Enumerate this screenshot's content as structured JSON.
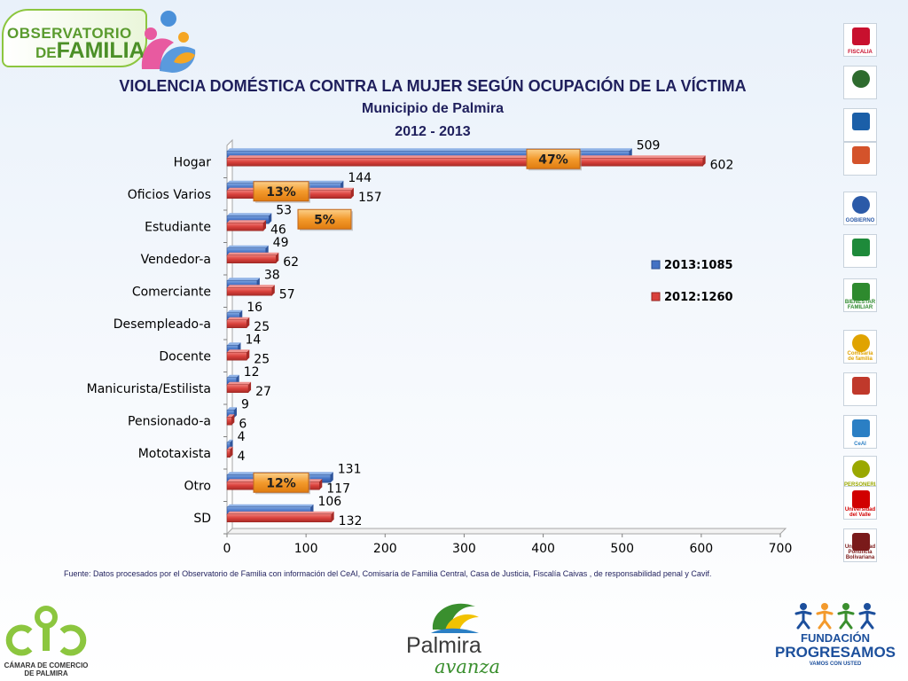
{
  "header": {
    "logo_line1": "OBSERVATORIO",
    "logo_line2_lead": "DE",
    "logo_line2": "FAMILIA"
  },
  "chart_data": {
    "type": "bar",
    "orientation": "horizontal",
    "title": "VIOLENCIA DOMÉSTICA CONTRA LA MUJER SEGÚN OCUPACIÓN DE LA VÍCTIMA",
    "subtitle": "Municipio de Palmira",
    "years": "2012 - 2013",
    "categories": [
      "Hogar",
      "Oficios Varios",
      "Estudiante",
      "Vendedor-a",
      "Comerciante",
      "Desempleado-a",
      "Docente",
      "Manicurista/Estilista",
      "Pensionado-a",
      "Mototaxista",
      "Otro",
      "SD"
    ],
    "series": [
      {
        "name": "2013:1085",
        "color": "#4472c4",
        "values": [
          509,
          144,
          53,
          49,
          38,
          16,
          14,
          12,
          9,
          4,
          131,
          106
        ]
      },
      {
        "name": "2012:1260",
        "color": "#d9413c",
        "values": [
          602,
          157,
          46,
          62,
          57,
          25,
          25,
          27,
          6,
          4,
          117,
          132
        ]
      }
    ],
    "xlim": [
      0,
      700
    ],
    "xticks": [
      0,
      100,
      200,
      300,
      400,
      500,
      600,
      700
    ],
    "legend_position": "right",
    "grid": false,
    "callouts": [
      {
        "text": "47%",
        "category": "Hogar"
      },
      {
        "text": "13%",
        "category": "Oficios Varios"
      },
      {
        "text": "5%",
        "category": "Estudiante"
      },
      {
        "text": "12%",
        "category": "Otro"
      }
    ]
  },
  "source_note": "Fuente: Datos procesados por el Observatorio de  Familia con información del CeAI, Comisaría de Familia Central, Casa de Justicia, Fiscalía Caivas , de responsabilidad penal y Cavif.",
  "right_logos": [
    {
      "name": "fiscalia",
      "caption": "FISCALIA",
      "color": "#c8102e"
    },
    {
      "name": "policia",
      "caption": "",
      "color": "#2e6b2e"
    },
    {
      "name": "personeria-emblem",
      "caption": "",
      "color": "#1b5fa8"
    },
    {
      "name": "icbf-children",
      "caption": "",
      "color": "#d4532b"
    },
    {
      "name": "sg-gobierno",
      "caption": "GOBIERNO",
      "color": "#2b5aa8"
    },
    {
      "name": "green-emblem",
      "caption": "",
      "color": "#1e8a3a"
    },
    {
      "name": "bienestar-familiar",
      "caption": "BIENESTAR FAMILIAR",
      "color": "#2e8a2e"
    },
    {
      "name": "comisaria-familia",
      "caption": "Comisaría de familia",
      "color": "#e0a300"
    },
    {
      "name": "casa-justicia",
      "caption": "",
      "color": "#c0392b"
    },
    {
      "name": "ceai",
      "caption": "CeAI",
      "color": "#2b7fc4"
    },
    {
      "name": "personeria",
      "caption": "PERSONERIA",
      "color": "#9aa800"
    },
    {
      "name": "universidad-valle",
      "caption": "Universidad del Valle",
      "color": "#d10000"
    },
    {
      "name": "upb",
      "caption": "Universidad Pontificia Bolivariana",
      "color": "#7a1a1a"
    }
  ],
  "footer": {
    "ccp_line1": "CÁMARA DE COMERCIO",
    "ccp_line2": "DE PALMIRA",
    "palmira_name": "Palmira",
    "palmira_tag": "avanza",
    "prog_line1": "FUNDACIÓN",
    "prog_line2": "PROGRESAMOS",
    "prog_line3": "VAMOS CON USTED"
  }
}
